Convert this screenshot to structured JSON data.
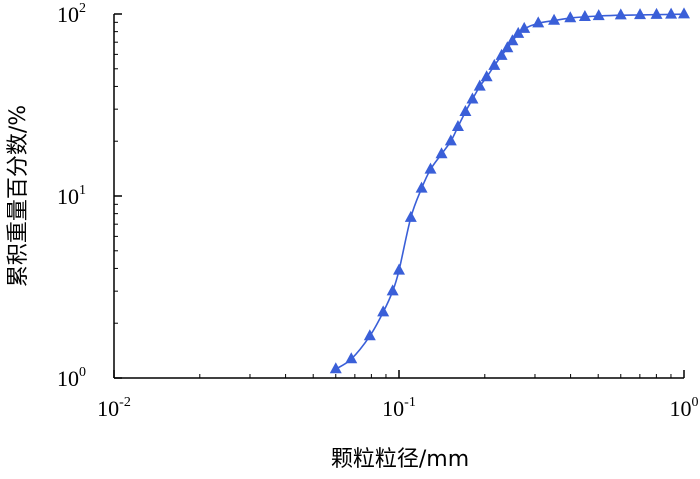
{
  "chart_data": {
    "type": "line",
    "title": "",
    "xlabel": "颗粒粒径/mm",
    "ylabel": "累积重量百分数/%",
    "x_scale": "log",
    "y_scale": "log",
    "xlim": [
      0.01,
      1
    ],
    "ylim": [
      1,
      100
    ],
    "grid": false,
    "x_ticks": [
      {
        "value": 0.01,
        "base": "10",
        "exp": "-2"
      },
      {
        "value": 0.1,
        "base": "10",
        "exp": "-1"
      },
      {
        "value": 1,
        "base": "10",
        "exp": "0"
      }
    ],
    "y_ticks": [
      {
        "value": 1,
        "base": "10",
        "exp": "0"
      },
      {
        "value": 10,
        "base": "10",
        "exp": "1"
      },
      {
        "value": 100,
        "base": "10",
        "exp": "2"
      }
    ],
    "series": [
      {
        "color": "#3a5fd8",
        "marker": "triangle",
        "x": [
          0.06,
          0.068,
          0.079,
          0.088,
          0.095,
          0.1,
          0.11,
          0.12,
          0.129,
          0.141,
          0.152,
          0.161,
          0.171,
          0.181,
          0.192,
          0.203,
          0.216,
          0.229,
          0.24,
          0.25,
          0.262,
          0.275,
          0.308,
          0.35,
          0.399,
          0.449,
          0.502,
          0.6,
          0.701,
          0.801,
          0.901,
          1.0
        ],
        "y": [
          1.12,
          1.27,
          1.7,
          2.3,
          3.0,
          3.9,
          7.6,
          11.0,
          14.0,
          17.0,
          20.0,
          24.0,
          29.0,
          34.0,
          40.0,
          45.0,
          52.0,
          59.0,
          65.0,
          71.0,
          78.0,
          83.0,
          89.0,
          92.0,
          95.0,
          96.5,
          97.5,
          98.5,
          98.8,
          99.2,
          99.5,
          99.8
        ]
      }
    ]
  }
}
